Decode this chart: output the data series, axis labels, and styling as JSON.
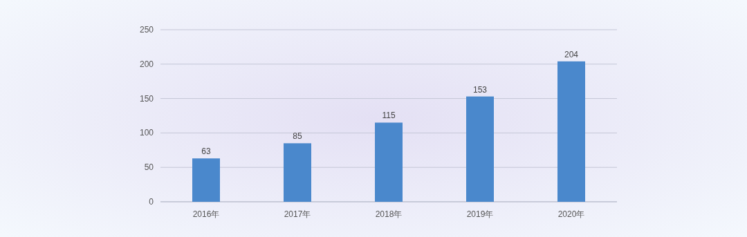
{
  "chart_data": {
    "type": "bar",
    "categories": [
      "2016年",
      "2017年",
      "2018年",
      "2019年",
      "2020年"
    ],
    "values": [
      63,
      85,
      115,
      153,
      204
    ],
    "color": "#4a88cc",
    "ylim": [
      0,
      250
    ],
    "yticks": [
      0,
      50,
      100,
      150,
      200,
      250
    ],
    "grid": "y",
    "data_labels": true
  }
}
